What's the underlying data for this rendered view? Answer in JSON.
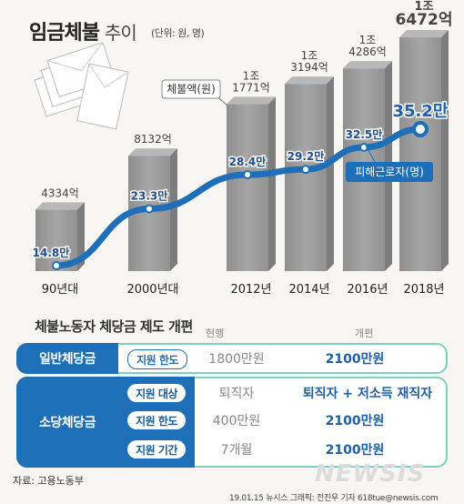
{
  "header": {
    "title": "임금체불",
    "subtitle": "추이",
    "unit": "(단위: 원, 명)"
  },
  "chart_data": {
    "type": "bar",
    "categories": [
      "90년대",
      "2000년대",
      "2012년",
      "2014년",
      "2016년",
      "2018년"
    ],
    "series": [
      {
        "name": "체불액(원)",
        "type": "bar",
        "values": [
          4334,
          8132,
          11771,
          13194,
          14286,
          16472
        ],
        "labels": [
          "4334억",
          "8132억",
          "1조\n1771억",
          "1조\n3194억",
          "1조\n4286억",
          "1조\n6472억"
        ]
      },
      {
        "name": "피해근로자(명)",
        "type": "line",
        "values": [
          14.8,
          23.3,
          28.4,
          29.2,
          32.5,
          35.2
        ],
        "labels": [
          "14.8만",
          "23.3만",
          "28.4만",
          "29.2만",
          "32.5만",
          "35.2만"
        ]
      }
    ],
    "bar_color": "#9b9b9b",
    "line_color": "#1f6fb8"
  },
  "table": {
    "title": "체불노동자 체당금 제도 개편",
    "col_current": "현행",
    "col_new": "개편",
    "rows": [
      {
        "category": "일반체당금",
        "item": "지원 한도",
        "current": "1800만원",
        "new": "2100만원"
      },
      {
        "category": "소당체당금",
        "item": "지원 대상",
        "current": "퇴직자",
        "new": "퇴직자 + 저소득 재직자"
      },
      {
        "category": "",
        "item": "지원 한도",
        "current": "400만원",
        "new": "2100만원"
      },
      {
        "category": "",
        "item": "지원 기간",
        "current": "7개월",
        "new": "2100만원"
      }
    ]
  },
  "footer": {
    "source": "자료: 고용노동부",
    "credit": "19.01.15 뉴시스 그래픽: 전진우 기자 618tue@newsis.com",
    "logo": "NEWSIS"
  },
  "colors": {
    "accent_blue": "#1d6fb8",
    "teal_border": "#7ed0c0",
    "bar_gray": "#9b9b9b"
  }
}
